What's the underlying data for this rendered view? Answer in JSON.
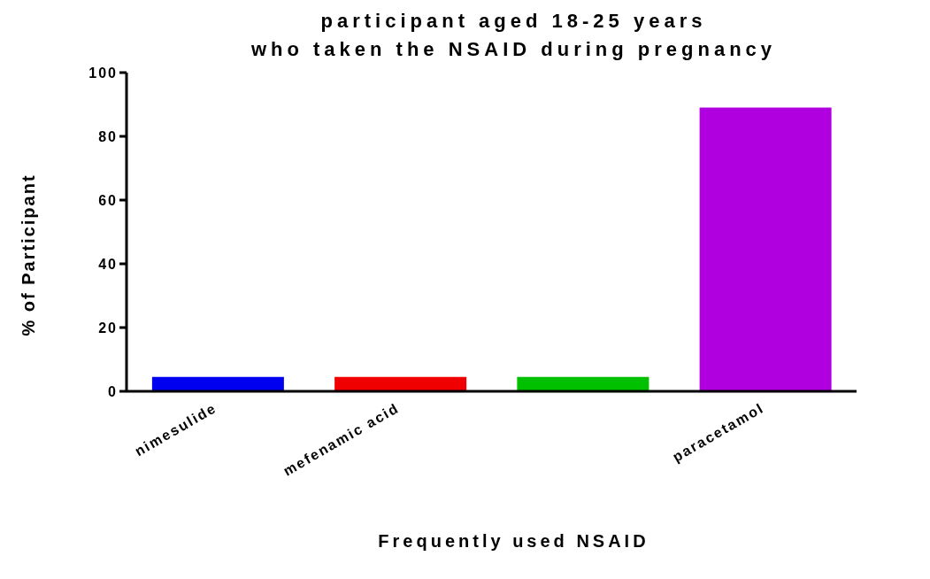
{
  "chart_data": {
    "type": "bar",
    "title": "participant aged 18-25 years\nwho taken the NSAID during pregnancy",
    "xlabel": "Frequently used NSAID",
    "ylabel": "% of Participant",
    "categories": [
      "nimesulide",
      "mefenamic acid",
      null,
      "paracetamol"
    ],
    "values": [
      4.5,
      4.5,
      4.5,
      89
    ],
    "colors": [
      "#0000f0",
      "#f00000",
      "#00c000",
      "#b000e0"
    ],
    "ylim": [
      0,
      100
    ],
    "yticks": [
      0,
      20,
      40,
      60,
      80,
      100
    ],
    "grid": false,
    "legend": false
  }
}
